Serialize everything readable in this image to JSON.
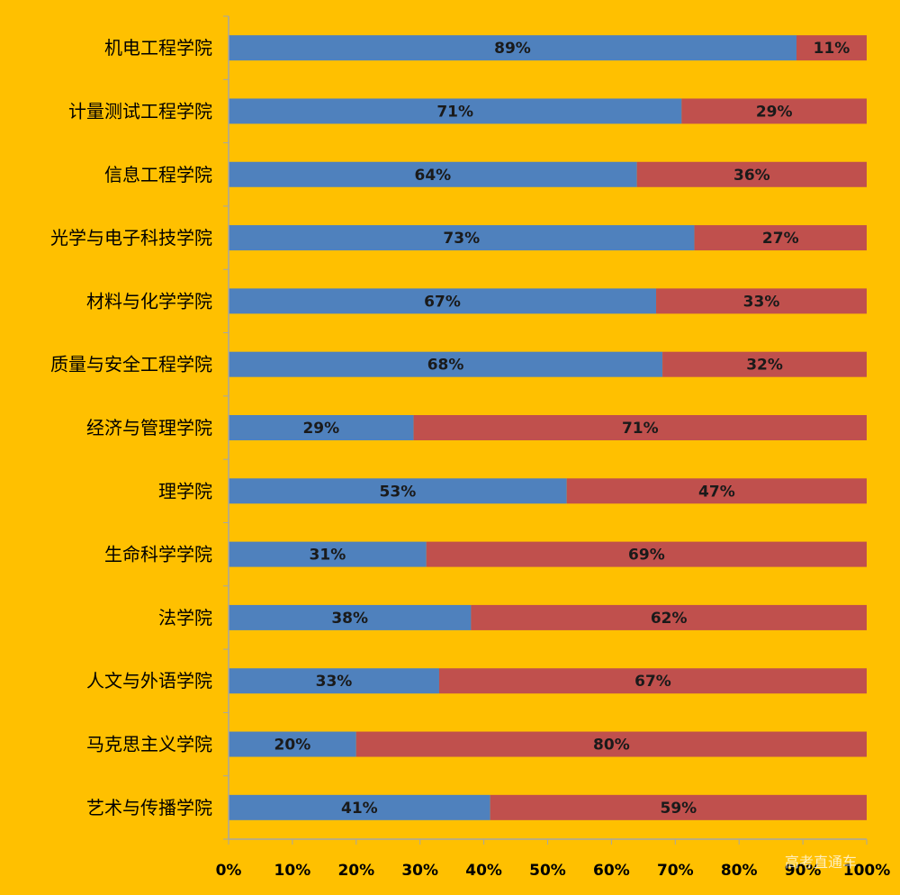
{
  "chart_data": {
    "type": "bar",
    "orientation": "horizontal",
    "stacked": true,
    "categories": [
      "机电工程学院",
      "计量测试工程学院",
      "信息工程学院",
      "光学与电子科技学院",
      "材料与化学学院",
      "质量与安全工程学院",
      "经济与管理学院",
      "理学院",
      "生命科学学院",
      "法学院",
      "人文与外语学院",
      "马克思主义学院",
      "艺术与传播学院"
    ],
    "series": [
      {
        "color": "#4F81BD",
        "values": [
          89,
          71,
          64,
          73,
          67,
          68,
          29,
          53,
          31,
          38,
          33,
          20,
          41
        ],
        "labels": [
          "89%",
          "71%",
          "64%",
          "73%",
          "67%",
          "68%",
          "29%",
          "53%",
          "31%",
          "38%",
          "33%",
          "20%",
          "41%"
        ]
      },
      {
        "color": "#C0504D",
        "values": [
          11,
          29,
          36,
          27,
          33,
          32,
          71,
          47,
          69,
          62,
          67,
          80,
          59
        ],
        "labels": [
          "11%",
          "29%",
          "36%",
          "27%",
          "33%",
          "32%",
          "71%",
          "47%",
          "69%",
          "62%",
          "67%",
          "80%",
          "59%"
        ]
      }
    ],
    "xlim": [
      0,
      100
    ],
    "x_ticks": [
      "0%",
      "10%",
      "20%",
      "30%",
      "40%",
      "50%",
      "60%",
      "70%",
      "80%",
      "90%",
      "100%"
    ],
    "grid": false,
    "legend": "none",
    "title": "",
    "xlabel": "",
    "ylabel": "",
    "background_color": "#FFC000",
    "axis_color": "#A6A6A6"
  },
  "watermark": "高考直通车"
}
